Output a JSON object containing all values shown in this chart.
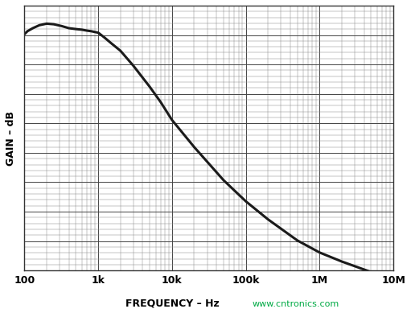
{
  "xlabel": "FREQUENCY – Hz",
  "ylabel": "GAIN – dB",
  "xlabel_color": "#000000",
  "xlabel_suffix": "www.cntronics.com",
  "xlabel_suffix_color": "#00aa44",
  "xmin": 100,
  "xmax": 10000000.0,
  "ymin": -80,
  "ymax": 8,
  "xtick_labels": [
    "100",
    "1k",
    "10k",
    "100k",
    "1M",
    "10M"
  ],
  "xtick_values": [
    100,
    1000,
    10000,
    100000,
    1000000,
    10000000
  ],
  "background_color": "#ffffff",
  "grid_major_color": "#444444",
  "grid_minor_color": "#888888",
  "line_color": "#1a1a1a",
  "line_width": 2.2,
  "curve_freq": [
    100,
    110,
    130,
    160,
    200,
    250,
    320,
    400,
    500,
    600,
    700,
    800,
    1000,
    1200,
    1500,
    2000,
    3000,
    5000,
    7000,
    10000,
    20000,
    50000,
    100000,
    200000,
    500000,
    1000000,
    2000000,
    5000000,
    7000000,
    10000000
  ],
  "curve_gain": [
    -1.5,
    -0.5,
    0.5,
    1.5,
    2.0,
    1.8,
    1.2,
    0.5,
    0.2,
    0.0,
    -0.3,
    -0.5,
    -1.0,
    -2.5,
    -4.5,
    -7.0,
    -12.0,
    -19.0,
    -24.0,
    -30.0,
    -39.0,
    -50.0,
    -57.0,
    -63.0,
    -70.0,
    -74.0,
    -77.0,
    -80.5,
    -81.0,
    -81.5
  ]
}
